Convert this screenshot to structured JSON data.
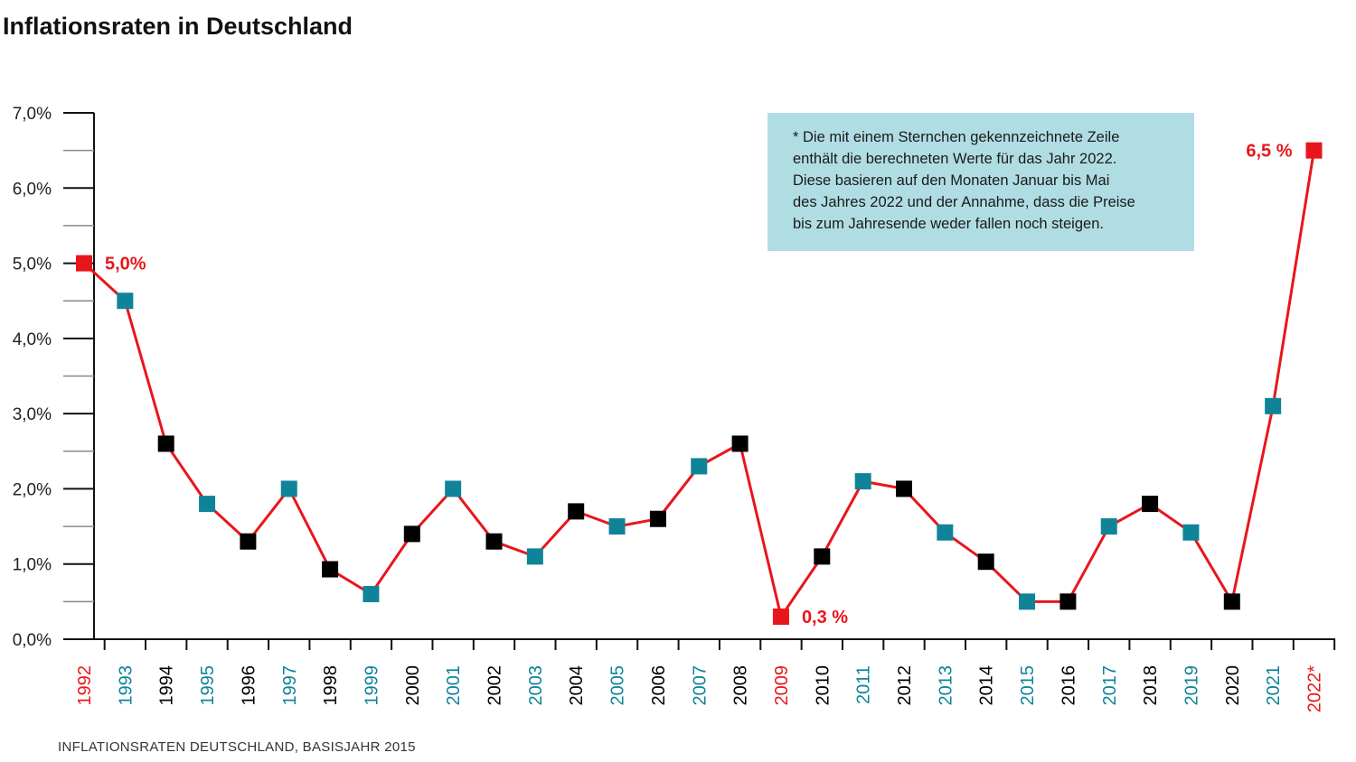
{
  "title": "Inflationsraten in Deutschland",
  "source": "INFLATIONSRATEN DEUTSCHLAND, BASISJAHR 2015",
  "note": {
    "lines": [
      "* Die mit einem Sternchen gekennzeichnete Zeile",
      "enthält die berechneten Werte für das Jahr 2022.",
      "Diese basieren auf den Monaten Januar bis Mai",
      "des Jahres 2022 und der Annahme, dass die Preise",
      "bis zum Jahresende weder fallen noch steigen."
    ]
  },
  "colors": {
    "line": "#e8161b",
    "highlight": "#e8161b",
    "teal": "#0f8499",
    "black": "#000000",
    "note_bg": "#b0dde3",
    "axis": "#111111",
    "minor_tick": "#888888"
  },
  "chart_data": {
    "type": "line",
    "title": "Inflationsraten in Deutschland",
    "xlabel": "",
    "ylabel": "",
    "ylim": [
      0,
      7
    ],
    "y_ticks": [
      {
        "value": 0,
        "label": "0,0%"
      },
      {
        "value": 1,
        "label": "1,0%"
      },
      {
        "value": 2,
        "label": "2,0%"
      },
      {
        "value": 3,
        "label": "3,0%"
      },
      {
        "value": 4,
        "label": "4,0%"
      },
      {
        "value": 5,
        "label": "5,0%"
      },
      {
        "value": 6,
        "label": "6,0%"
      },
      {
        "value": 7,
        "label": "7,0%"
      }
    ],
    "y_minor_ticks": [
      0.5,
      1.5,
      2.5,
      3.5,
      4.5,
      5.5,
      6.5
    ],
    "grid": false,
    "series": [
      {
        "values": [
          {
            "x": "1992",
            "y": 5.0,
            "style": "highlight"
          },
          {
            "x": "1993",
            "y": 4.5,
            "style": "teal"
          },
          {
            "x": "1994",
            "y": 2.6,
            "style": "black"
          },
          {
            "x": "1995",
            "y": 1.8,
            "style": "teal"
          },
          {
            "x": "1996",
            "y": 1.3,
            "style": "black"
          },
          {
            "x": "1997",
            "y": 2.0,
            "style": "teal"
          },
          {
            "x": "1998",
            "y": 0.93,
            "style": "black"
          },
          {
            "x": "1999",
            "y": 0.6,
            "style": "teal"
          },
          {
            "x": "2000",
            "y": 1.4,
            "style": "black"
          },
          {
            "x": "2001",
            "y": 2.0,
            "style": "teal"
          },
          {
            "x": "2002",
            "y": 1.3,
            "style": "black"
          },
          {
            "x": "2003",
            "y": 1.1,
            "style": "teal"
          },
          {
            "x": "2004",
            "y": 1.7,
            "style": "black"
          },
          {
            "x": "2005",
            "y": 1.5,
            "style": "teal"
          },
          {
            "x": "2006",
            "y": 1.6,
            "style": "black"
          },
          {
            "x": "2007",
            "y": 2.3,
            "style": "teal"
          },
          {
            "x": "2008",
            "y": 2.6,
            "style": "black"
          },
          {
            "x": "2009",
            "y": 0.3,
            "style": "highlight"
          },
          {
            "x": "2010",
            "y": 1.1,
            "style": "black"
          },
          {
            "x": "2011",
            "y": 2.1,
            "style": "teal"
          },
          {
            "x": "2012",
            "y": 2.0,
            "style": "black"
          },
          {
            "x": "2013",
            "y": 1.42,
            "style": "teal"
          },
          {
            "x": "2014",
            "y": 1.03,
            "style": "black"
          },
          {
            "x": "2015",
            "y": 0.5,
            "style": "teal"
          },
          {
            "x": "2016",
            "y": 0.5,
            "style": "black"
          },
          {
            "x": "2017",
            "y": 1.5,
            "style": "teal"
          },
          {
            "x": "2018",
            "y": 1.8,
            "style": "black"
          },
          {
            "x": "2019",
            "y": 1.42,
            "style": "teal"
          },
          {
            "x": "2020",
            "y": 0.5,
            "style": "black"
          },
          {
            "x": "2021",
            "y": 3.1,
            "style": "teal"
          },
          {
            "x": "2022*",
            "y": 6.5,
            "style": "highlight"
          }
        ]
      }
    ],
    "annotations": [
      {
        "index": 0,
        "text": "5,0%"
      },
      {
        "index": 17,
        "text": "0,3 %"
      },
      {
        "index": 30,
        "text": "6,5 %",
        "side": "left"
      }
    ]
  }
}
